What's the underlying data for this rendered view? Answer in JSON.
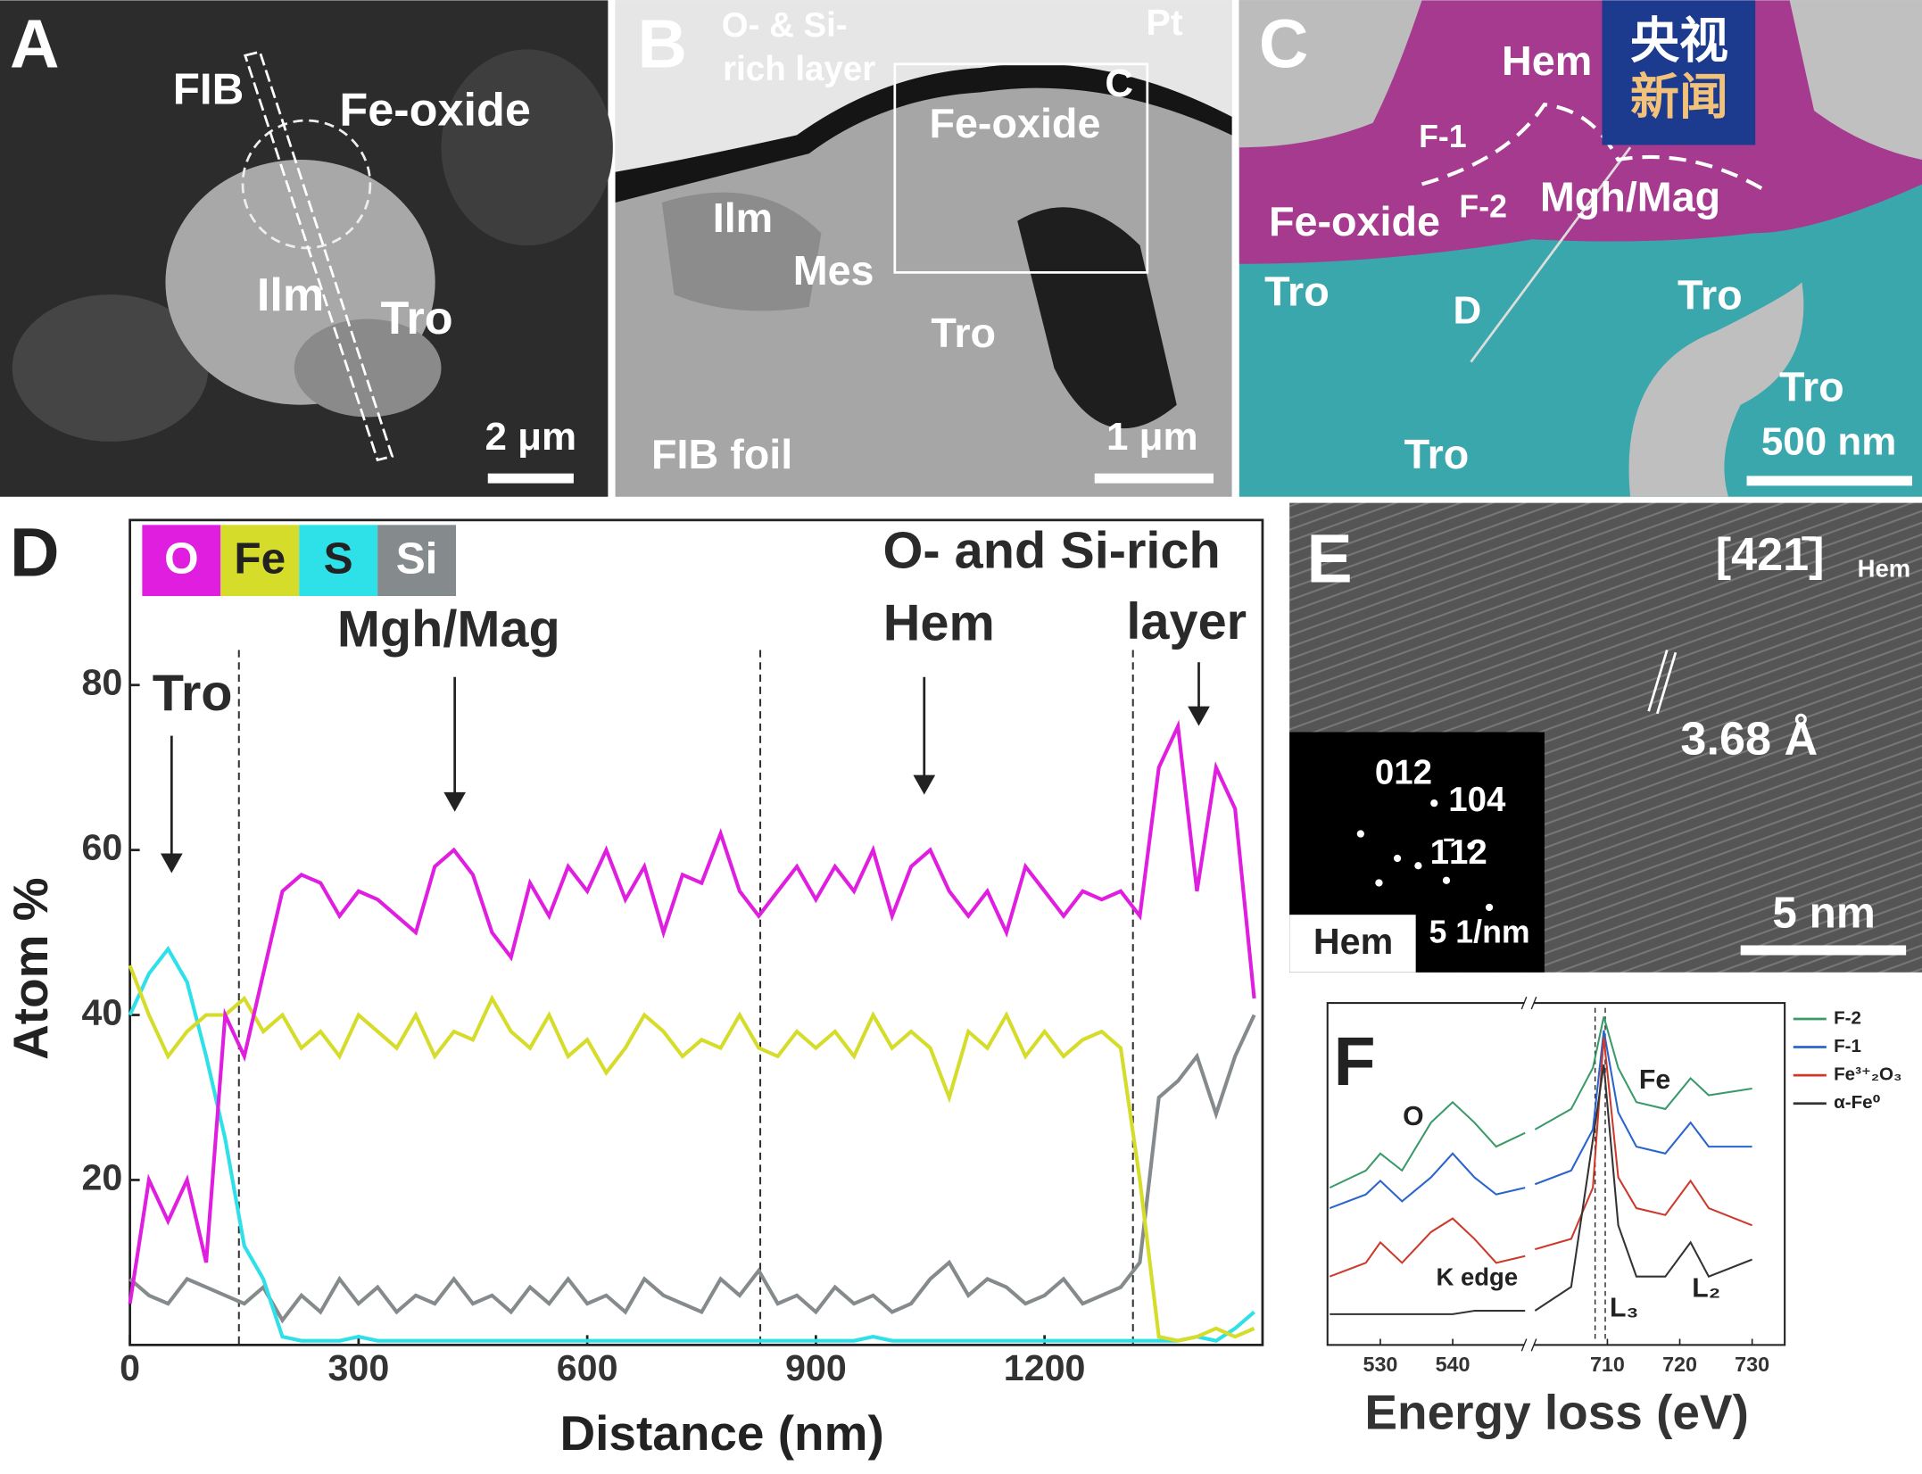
{
  "panels": {
    "A": {
      "label": "A",
      "texts": [
        "FIB",
        "Fe-oxide",
        "Ilm",
        "Tro",
        "2 μm"
      ]
    },
    "B": {
      "label": "B",
      "texts": [
        "O- & Si-",
        "rich layer",
        "Pt",
        "C",
        "Fe-oxide",
        "Ilm",
        "Mes",
        "Tro",
        "FIB foil",
        "1 μm"
      ]
    },
    "C": {
      "label": "C",
      "texts": [
        "Hem",
        "F-1",
        "F-2",
        "Mgh/Mag",
        "Fe-oxide",
        "Tro",
        "Tro",
        "D",
        "Tro",
        "Tro",
        "500 nm"
      ],
      "logo": [
        "央视",
        "新闻"
      ]
    },
    "E": {
      "label": "E",
      "texts": [
        "[421̄]",
        "Hem",
        "3.68 Å",
        "012",
        "104",
        "1̄12",
        "Hem",
        "5 1/nm",
        "5 nm"
      ]
    }
  },
  "chart_data": [
    {
      "type": "line",
      "label": "D",
      "x_label": "Distance (nm)",
      "y_label": "Atom %",
      "x": [
        0,
        25,
        50,
        75,
        100,
        125,
        150,
        175,
        200,
        225,
        250,
        275,
        300,
        325,
        350,
        375,
        400,
        425,
        450,
        475,
        500,
        525,
        550,
        575,
        600,
        625,
        650,
        675,
        700,
        725,
        750,
        775,
        800,
        825,
        850,
        875,
        900,
        925,
        950,
        975,
        1000,
        1025,
        1050,
        1075,
        1100,
        1125,
        1150,
        1175,
        1200,
        1225,
        1250,
        1275,
        1300,
        1325,
        1350,
        1375,
        1400,
        1425,
        1450,
        1475
      ],
      "series": [
        {
          "name": "O",
          "color": "#e01ee0",
          "values": [
            5,
            20,
            15,
            20,
            10,
            40,
            35,
            45,
            55,
            57,
            56,
            52,
            55,
            54,
            52,
            50,
            58,
            60,
            57,
            50,
            47,
            56,
            52,
            58,
            55,
            60,
            54,
            58,
            50,
            57,
            56,
            62,
            55,
            52,
            55,
            58,
            54,
            58,
            55,
            60,
            52,
            58,
            60,
            55,
            52,
            55,
            50,
            58,
            55,
            52,
            55,
            54,
            55,
            52,
            70,
            75,
            55,
            70,
            65,
            42
          ]
        },
        {
          "name": "Fe",
          "color": "#d6dc2a",
          "values": [
            46,
            40,
            35,
            38,
            40,
            40,
            42,
            38,
            40,
            36,
            38,
            35,
            40,
            38,
            36,
            40,
            35,
            38,
            37,
            42,
            38,
            36,
            40,
            35,
            37,
            33,
            36,
            40,
            38,
            35,
            37,
            36,
            40,
            36,
            35,
            38,
            36,
            38,
            35,
            40,
            36,
            38,
            36,
            30,
            38,
            36,
            40,
            35,
            38,
            35,
            37,
            38,
            36,
            20,
            1,
            0.5,
            1,
            2,
            1,
            2
          ]
        },
        {
          "name": "S",
          "color": "#2ee0e8",
          "values": [
            40,
            45,
            48,
            44,
            35,
            25,
            12,
            8,
            1,
            0.5,
            0.5,
            0.5,
            1,
            0.5,
            0.5,
            0.5,
            0.5,
            0.5,
            0.5,
            0.5,
            0.5,
            0.5,
            0.5,
            0.5,
            0.5,
            0.5,
            0.5,
            0.5,
            0.5,
            0.5,
            0.5,
            0.5,
            0.5,
            0.5,
            0.5,
            0.5,
            0.5,
            0.5,
            0.5,
            1,
            0.5,
            0.5,
            0.5,
            0.5,
            0.5,
            0.5,
            0.5,
            0.5,
            0.5,
            0.5,
            0.5,
            0.5,
            0.5,
            0.5,
            0.5,
            0.5,
            1,
            0.5,
            2,
            4
          ]
        },
        {
          "name": "Si",
          "color": "#858a8c",
          "values": [
            8,
            6,
            5,
            8,
            7,
            6,
            5,
            7,
            3,
            6,
            4,
            8,
            5,
            7,
            4,
            6,
            5,
            8,
            5,
            6,
            4,
            7,
            5,
            8,
            5,
            6,
            4,
            8,
            6,
            5,
            4,
            8,
            6,
            9,
            5,
            6,
            4,
            7,
            5,
            6,
            4,
            5,
            8,
            10,
            6,
            8,
            7,
            5,
            6,
            8,
            5,
            6,
            7,
            10,
            30,
            32,
            35,
            28,
            35,
            40
          ]
        }
      ],
      "xlim": [
        0,
        1486
      ],
      "ylim": [
        0,
        100
      ],
      "xticks": [
        0,
        300,
        600,
        900,
        1200
      ],
      "yticks": [
        20,
        40,
        60,
        80
      ],
      "boundaries": [
        143,
        827,
        1316
      ],
      "annotations": [
        "Tro",
        "Mgh/Mag",
        "Hem",
        "O- and Si-rich",
        "layer"
      ]
    },
    {
      "type": "line",
      "label": "F",
      "x_label": "Energy loss (eV)",
      "x": [
        523,
        528,
        530,
        533,
        537,
        540,
        543,
        546,
        550,
        700,
        705,
        708,
        709.5,
        711.5,
        714,
        718,
        721.5,
        724,
        730,
        735
      ],
      "series": [
        {
          "name": "F-2",
          "color": "#3a9a6a",
          "values": [
            46,
            51,
            56,
            51,
            65,
            71,
            65,
            58,
            62,
            63,
            69,
            81,
            96,
            81,
            71,
            69,
            78,
            73,
            75,
            75
          ]
        },
        {
          "name": "F-1",
          "color": "#2a64cc",
          "values": [
            40,
            44,
            48,
            42,
            49,
            56,
            49,
            44,
            46,
            47,
            51,
            63,
            92,
            68,
            58,
            56,
            65,
            58,
            58,
            60
          ]
        },
        {
          "name": "Fe³⁺₂O₃",
          "color": "#cc3a2c",
          "values": [
            20,
            24,
            30,
            24,
            33,
            37,
            31,
            24,
            26,
            28,
            31,
            46,
            90,
            49,
            40,
            38,
            48,
            40,
            35,
            35
          ]
        },
        {
          "name": "α-Fe⁰",
          "color": "#333333",
          "values": [
            9,
            9,
            9,
            9,
            9,
            9,
            10,
            10,
            10,
            10,
            17,
            60,
            82,
            35,
            20,
            20,
            30,
            20,
            25,
            27
          ]
        }
      ],
      "xlim_segments": [
        [
          522.7,
          550.2
        ],
        [
          699.5,
          734.5
        ]
      ],
      "ylim": [
        0,
        100
      ],
      "xticks": [
        530,
        540,
        710,
        720,
        730
      ],
      "vlines": [
        708.3,
        709.7
      ],
      "annotations": [
        "O",
        "Fe",
        "K edge",
        "L₃",
        "L₂"
      ]
    }
  ]
}
